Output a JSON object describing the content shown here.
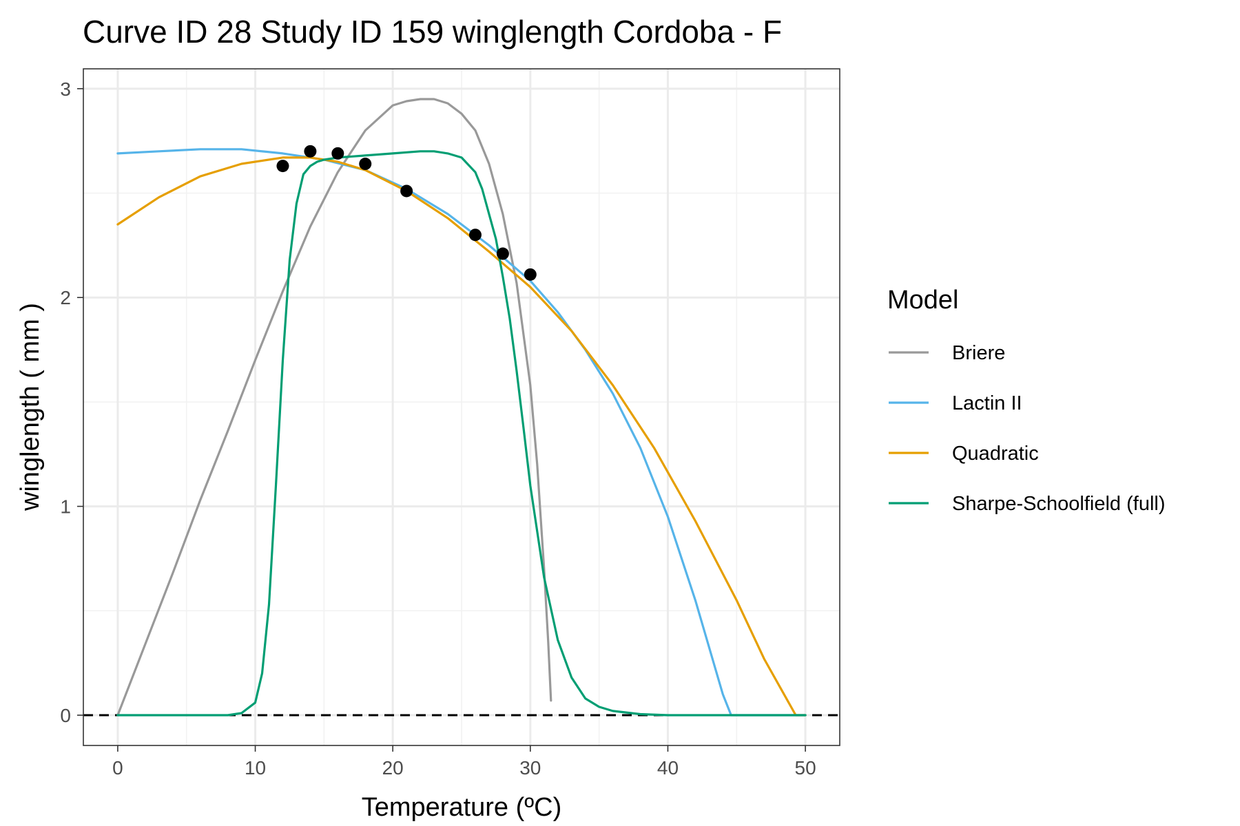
{
  "chart_data": {
    "type": "line",
    "title": "Curve ID 28 Study ID 159 winglength Cordoba - F",
    "xlabel": "Temperature (ºC)",
    "ylabel": "winglength ( mm )",
    "xlim": [
      -2.5,
      52.5
    ],
    "ylim": [
      -0.145,
      3.095
    ],
    "x_ticks": [
      0,
      10,
      20,
      30,
      40,
      50
    ],
    "y_ticks": [
      0,
      1,
      2,
      3
    ],
    "grid": true,
    "reference_line": {
      "y": 0,
      "style": "dashed",
      "color": "#000000"
    },
    "legend": {
      "title": "Model",
      "position": "right",
      "entries": [
        {
          "label": "Briere",
          "color": "#999999"
        },
        {
          "label": "Lactin II",
          "color": "#56B4E9"
        },
        {
          "label": "Quadratic",
          "color": "#E69F00"
        },
        {
          "label": "Sharpe-Schoolfield (full)",
          "color": "#009E73"
        }
      ]
    },
    "points": {
      "x": [
        12,
        14,
        16,
        18,
        21,
        26,
        28,
        30
      ],
      "y": [
        2.63,
        2.7,
        2.69,
        2.64,
        2.51,
        2.3,
        2.21,
        2.11
      ],
      "color": "#000000"
    },
    "series": [
      {
        "name": "Briere",
        "color": "#999999",
        "x": [
          0,
          2,
          4,
          6,
          8,
          10,
          12,
          14,
          16,
          18,
          20,
          21,
          22,
          23,
          24,
          25,
          26,
          27,
          28,
          29,
          30,
          30.5,
          31,
          31.3,
          31.5
        ],
        "y": [
          0,
          0.34,
          0.68,
          1.03,
          1.36,
          1.7,
          2.03,
          2.34,
          2.6,
          2.8,
          2.92,
          2.94,
          2.95,
          2.95,
          2.93,
          2.88,
          2.8,
          2.64,
          2.4,
          2.07,
          1.58,
          1.2,
          0.7,
          0.35,
          0.07
        ]
      },
      {
        "name": "Lactin II",
        "color": "#56B4E9",
        "x": [
          0,
          3,
          6,
          9,
          12,
          15,
          18,
          21,
          24,
          27,
          30,
          32,
          34,
          36,
          38,
          40,
          42,
          44,
          44.6,
          46,
          48,
          50
        ],
        "y": [
          2.69,
          2.7,
          2.71,
          2.71,
          2.69,
          2.66,
          2.61,
          2.52,
          2.4,
          2.25,
          2.08,
          1.93,
          1.75,
          1.54,
          1.28,
          0.95,
          0.55,
          0.1,
          0,
          0,
          0,
          0
        ]
      },
      {
        "name": "Quadratic",
        "color": "#E69F00",
        "x": [
          0,
          3,
          6,
          9,
          12,
          14,
          16,
          18,
          21,
          24,
          27,
          30,
          33,
          36,
          39,
          42,
          45,
          47,
          49.3,
          50
        ],
        "y": [
          2.35,
          2.48,
          2.58,
          2.64,
          2.67,
          2.67,
          2.65,
          2.61,
          2.51,
          2.38,
          2.22,
          2.05,
          1.84,
          1.58,
          1.28,
          0.93,
          0.55,
          0.27,
          0,
          0
        ]
      },
      {
        "name": "Sharpe-Schoolfield (full)",
        "color": "#009E73",
        "x": [
          0,
          4,
          8,
          9,
          10,
          10.5,
          11,
          11.5,
          12,
          12.5,
          13,
          13.5,
          14,
          14.5,
          15,
          16,
          18,
          20,
          22,
          23,
          24,
          25,
          26,
          26.5,
          27,
          27.5,
          28,
          28.5,
          29,
          29.5,
          30,
          31,
          32,
          33,
          34,
          35,
          36,
          38,
          40,
          45,
          50
        ],
        "y": [
          0,
          0,
          0,
          0.01,
          0.06,
          0.2,
          0.53,
          1.1,
          1.7,
          2.18,
          2.45,
          2.59,
          2.63,
          2.65,
          2.66,
          2.67,
          2.68,
          2.69,
          2.7,
          2.7,
          2.69,
          2.67,
          2.6,
          2.52,
          2.4,
          2.28,
          2.1,
          1.9,
          1.65,
          1.38,
          1.1,
          0.66,
          0.36,
          0.18,
          0.08,
          0.04,
          0.02,
          0.005,
          0,
          0,
          0
        ]
      }
    ]
  }
}
